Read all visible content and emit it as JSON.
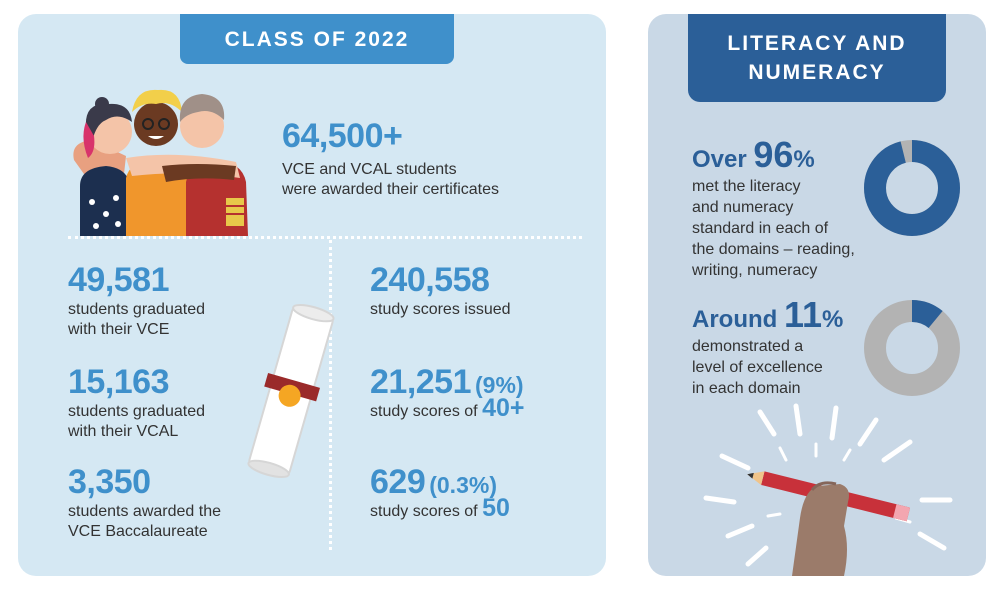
{
  "left": {
    "title": "CLASS OF 2022",
    "hero": {
      "value": "64,500+",
      "desc_line1": "VCE and VCAL students",
      "desc_line2": "were awarded their certificates"
    },
    "stats_left": [
      {
        "value": "49,581",
        "line1": "students graduated",
        "line2": "with their VCE"
      },
      {
        "value": "15,163",
        "line1": "students graduated",
        "line2": "with their VCAL"
      },
      {
        "value": "3,350",
        "line1": "students awarded the",
        "line2": "VCE Baccalaureate"
      }
    ],
    "stats_right": [
      {
        "value": "240,558",
        "line1": "study scores issued"
      },
      {
        "value": "21,251",
        "paren": "(9%)",
        "line1": "study scores of",
        "tail": "40+"
      },
      {
        "value": "629",
        "paren": "(0.3%)",
        "line1": "study scores of",
        "tail": "50"
      }
    ]
  },
  "right": {
    "title_line1": "LITERACY AND",
    "title_line2": "NUMERACY",
    "stat1": {
      "prefix": "Over",
      "number": "96",
      "unit": "%",
      "lines": [
        "met the literacy",
        "and numeracy",
        "standard in each of",
        "the domains – reading,",
        "writing, numeracy"
      ],
      "fraction": 0.96
    },
    "stat2": {
      "prefix": "Around",
      "number": "11",
      "unit": "%",
      "lines": [
        "demonstrated a",
        "level of excellence",
        "in each domain"
      ],
      "fraction": 0.11
    }
  },
  "colors": {
    "panel_left": "#d5e8f3",
    "panel_right": "#c9d8e6",
    "accent": "#3f90cb",
    "dark_blue": "#2b5f98",
    "grey": "#b3b3b3",
    "text": "#333333"
  }
}
